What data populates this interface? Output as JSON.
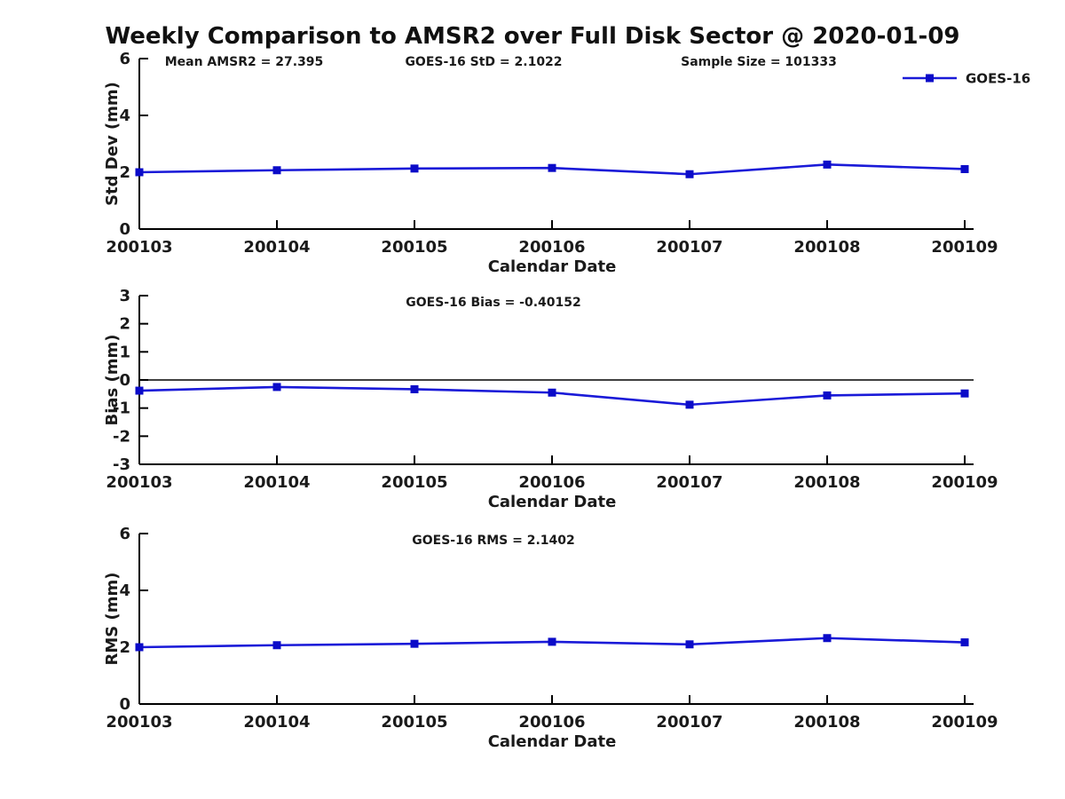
{
  "page": {
    "title": "Weekly Comparison to AMSR2 over Full Disk Sector @ 2020-01-09"
  },
  "colors": {
    "line": "#1a1ad8",
    "marker": "#0b0bc8",
    "axis": "#000000",
    "text": "#1a1a1a"
  },
  "chart_data": {
    "type": "line",
    "title": "Weekly Comparison to AMSR2 over Full Disk Sector @ 2020-01-09",
    "categories": [
      "200103",
      "200104",
      "200105",
      "200106",
      "200107",
      "200108",
      "200109"
    ],
    "xlabel": "Calendar Date",
    "grid": false,
    "legend": {
      "entries": [
        "GOES-16"
      ],
      "position": "top-right",
      "marker": "square",
      "line_color": "#1a1ad8"
    },
    "subplots": [
      {
        "ylabel": "Std Dev (mm)",
        "ylim": [
          0,
          6
        ],
        "yticks": [
          0,
          2,
          4,
          6
        ],
        "zero_line": false,
        "annotations": [
          "Mean AMSR2 = 27.395",
          "GOES-16 StD = 2.1022",
          "Sample Size = 101333"
        ],
        "series": [
          {
            "name": "GOES-16",
            "values": [
              2.0,
              2.07,
              2.13,
              2.15,
              1.93,
              2.27,
              2.11
            ]
          }
        ]
      },
      {
        "ylabel": "Bias (mm)",
        "ylim": [
          -3,
          3
        ],
        "yticks": [
          3,
          2,
          1,
          0,
          -1,
          -2,
          -3
        ],
        "zero_line": true,
        "annotations": [
          "GOES-16 Bias  = -0.40152"
        ],
        "series": [
          {
            "name": "GOES-16",
            "values": [
              -0.38,
              -0.25,
              -0.33,
              -0.45,
              -0.88,
              -0.55,
              -0.48
            ]
          }
        ]
      },
      {
        "ylabel": "RMS (mm)",
        "ylim": [
          0,
          6
        ],
        "yticks": [
          0,
          2,
          4,
          6
        ],
        "zero_line": false,
        "annotations": [
          "GOES-16 RMS = 2.1402"
        ],
        "series": [
          {
            "name": "GOES-16",
            "values": [
              2.0,
              2.07,
              2.12,
              2.19,
              2.1,
              2.32,
              2.17
            ]
          }
        ]
      }
    ]
  }
}
